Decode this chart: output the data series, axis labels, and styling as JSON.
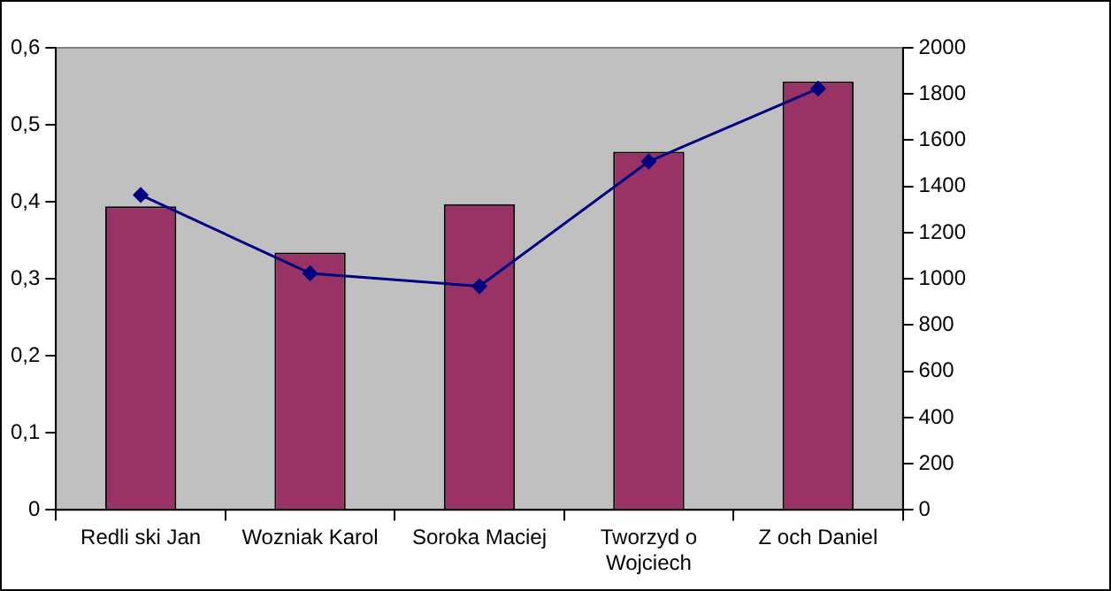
{
  "chart_data": {
    "type": "bar",
    "categories": [
      "Redli ski Jan",
      "Wozniak Karol",
      "Soroka Maciej",
      "Tworzyd o Wojciech",
      "Z och Daniel"
    ],
    "series": [
      {
        "color": "#993366",
        "values": [
          0.394,
          0.334,
          0.397,
          0.465,
          0.556
        ]
      },
      {
        "type": "line",
        "axis": "y2",
        "color": "#000080",
        "values": [
          1363,
          1024,
          968,
          1508,
          1823
        ]
      }
    ],
    "ylim": [
      0,
      0.6
    ],
    "yticks": [
      {
        "value": 0,
        "label": "0"
      },
      {
        "value": 0.1,
        "label": "0,1"
      },
      {
        "value": 0.2,
        "label": "0,2"
      },
      {
        "value": 0.3,
        "label": "0,3"
      },
      {
        "value": 0.4,
        "label": "0,4"
      },
      {
        "value": 0.5,
        "label": "0,5"
      },
      {
        "value": 0.6,
        "label": "0,6"
      }
    ],
    "y2lim": [
      0,
      2000
    ],
    "y2ticks": [
      0,
      200,
      400,
      600,
      800,
      1000,
      1200,
      1400,
      1600,
      1800,
      2000
    ],
    "grid": false,
    "legend": false,
    "marker": "diamond",
    "line_style": "solid"
  }
}
